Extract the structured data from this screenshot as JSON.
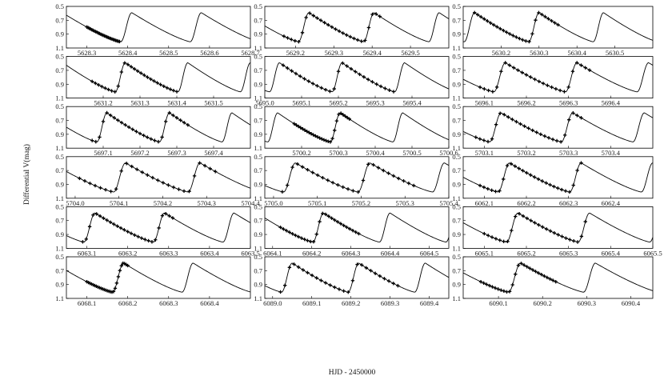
{
  "chart_data": {
    "type": "line",
    "title": "",
    "xlabel": "HJD - 2450000",
    "ylabel": "Differential V(mag)",
    "grid": false,
    "light_curve": {
      "period_days": 0.17,
      "amplitude_mag": 0.42,
      "mean_mag": 0.8,
      "model_line": "solid black",
      "observations_marker": "cross"
    },
    "y_ticks": [
      "0.5",
      "0.7",
      "0.9",
      "1.1"
    ],
    "panels": [
      {
        "xlim": [
          5628.25,
          5628.7
        ],
        "x_ticks": [
          "5628.3",
          "5628.4",
          "5628.5",
          "5628.6",
          "5628.7"
        ],
        "obs_range": [
          5628.3,
          5628.38
        ],
        "phase_zero": 5628.41
      },
      {
        "xlim": [
          5629.12,
          5629.6
        ],
        "x_ticks": [
          "5629.2",
          "5629.3",
          "5629.4",
          "5629.5"
        ],
        "obs_range": [
          5629.17,
          5629.42
        ],
        "phase_zero": 5629.405
      },
      {
        "xlim": [
          5630.1,
          5630.6
        ],
        "x_ticks": [
          "5630.2",
          "5630.3",
          "5630.4",
          "5630.5"
        ],
        "obs_range": [
          5630.13,
          5630.35
        ],
        "phase_zero": 5630.3
      },
      {
        "xlim": [
          5631.1,
          5631.6
        ],
        "x_ticks": [
          "5631.2",
          "5631.3",
          "5631.4",
          "5631.5"
        ],
        "obs_range": [
          5631.17,
          5631.4
        ],
        "phase_zero": 5631.26
      },
      {
        "xlim": [
          5695.0,
          5695.5
        ],
        "x_ticks": [
          "5695.0",
          "5695.1",
          "5695.2",
          "5695.3",
          "5695.4"
        ],
        "obs_range": [
          5695.05,
          5695.35
        ],
        "phase_zero": 5695.21
      },
      {
        "xlim": [
          5696.05,
          5696.5
        ],
        "x_ticks": [
          "5696.1",
          "5696.2",
          "5696.3",
          "5696.4"
        ],
        "obs_range": [
          5696.09,
          5696.35
        ],
        "phase_zero": 5696.15
      },
      {
        "xlim": [
          5697.0,
          5697.5
        ],
        "x_ticks": [
          "5697.1",
          "5697.2",
          "5697.3",
          "5697.4"
        ],
        "obs_range": [
          5697.07,
          5697.33
        ],
        "phase_zero": 5697.11
      },
      {
        "xlim": [
          5700.1,
          5700.6
        ],
        "x_ticks": [
          "5700.2",
          "5700.3",
          "5700.4",
          "5700.5",
          "5700.6"
        ],
        "obs_range": [
          5700.18,
          5700.33
        ],
        "phase_zero": 5700.305
      },
      {
        "xlim": [
          5703.05,
          5703.5
        ],
        "x_ticks": [
          "5703.1",
          "5703.2",
          "5703.3",
          "5703.4"
        ],
        "obs_range": [
          5703.08,
          5703.33
        ],
        "phase_zero": 5703.14
      },
      {
        "xlim": [
          5703.98,
          5704.4
        ],
        "x_ticks": [
          "5704.0",
          "5704.1",
          "5704.2",
          "5704.3",
          "5704.4"
        ],
        "obs_range": [
          5704.01,
          5704.32
        ],
        "phase_zero": 5704.115
      },
      {
        "xlim": [
          5704.98,
          5705.4
        ],
        "x_ticks": [
          "5705.0",
          "5705.1",
          "5705.2",
          "5705.3",
          "5705.4"
        ],
        "obs_range": [
          5705.02,
          5705.32
        ],
        "phase_zero": 5705.05
      },
      {
        "xlim": [
          6062.05,
          6062.5
        ],
        "x_ticks": [
          "6062.1",
          "6062.2",
          "6062.3",
          "6062.4"
        ],
        "obs_range": [
          6062.09,
          6062.33
        ],
        "phase_zero": 6062.16
      },
      {
        "xlim": [
          6063.05,
          6063.5
        ],
        "x_ticks": [
          "6063.1",
          "6063.2",
          "6063.3",
          "6063.4",
          "6063.5"
        ],
        "obs_range": [
          6063.09,
          6063.31
        ],
        "phase_zero": 6063.12
      },
      {
        "xlim": [
          6064.08,
          6064.55
        ],
        "x_ticks": [
          "6064.1",
          "6064.2",
          "6064.3",
          "6064.4",
          "6064.5"
        ],
        "obs_range": [
          6064.12,
          6064.32
        ],
        "phase_zero": 6064.23
      },
      {
        "xlim": [
          6065.05,
          6065.5
        ],
        "x_ticks": [
          "6065.1",
          "6065.2",
          "6065.3",
          "6065.4",
          "6065.5"
        ],
        "obs_range": [
          6065.1,
          6065.34
        ],
        "phase_zero": 6065.18
      },
      {
        "xlim": [
          6068.05,
          6068.5
        ],
        "x_ticks": [
          "6068.1",
          "6068.2",
          "6068.3",
          "6068.4"
        ],
        "obs_range": [
          6068.1,
          6068.2
        ],
        "phase_zero": 6068.19
      },
      {
        "xlim": [
          6088.98,
          6089.45
        ],
        "x_ticks": [
          "6089.0",
          "6089.1",
          "6089.2",
          "6089.3",
          "6089.4"
        ],
        "obs_range": [
          6089.02,
          6089.32
        ],
        "phase_zero": 6089.22
      },
      {
        "xlim": [
          6090.02,
          6090.45
        ],
        "x_ticks": [
          "6090.1",
          "6090.2",
          "6090.3",
          "6090.4"
        ],
        "obs_range": [
          6090.06,
          6090.23
        ],
        "phase_zero": 6090.15
      }
    ]
  }
}
